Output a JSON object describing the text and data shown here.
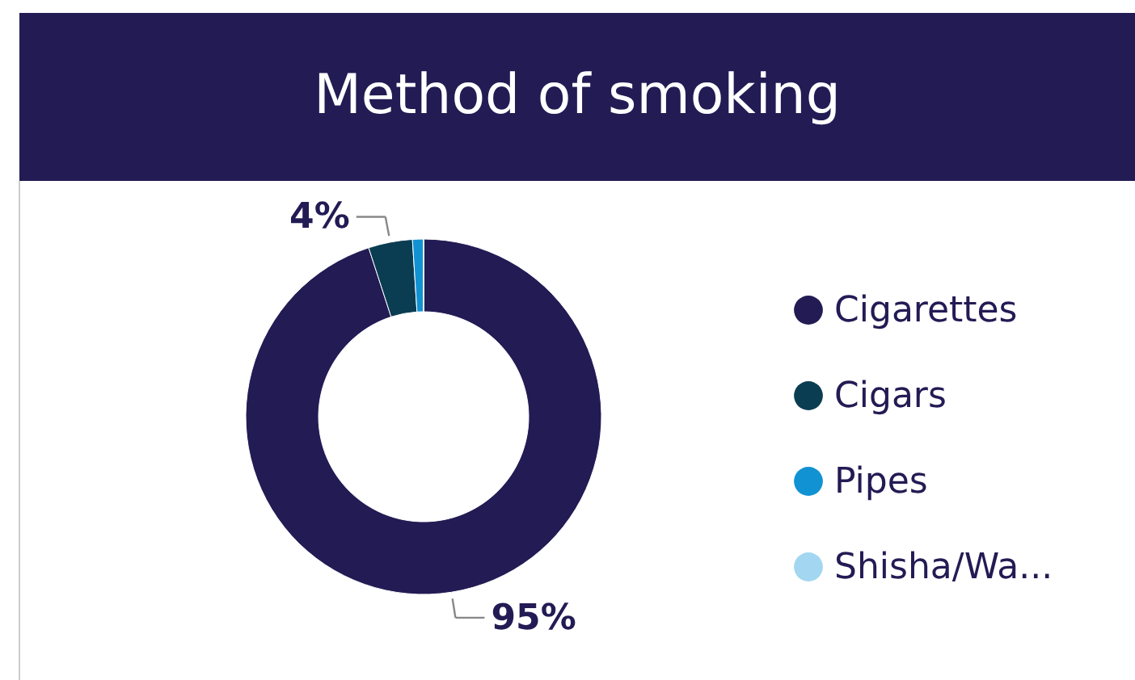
{
  "chart_data": {
    "type": "donut",
    "title": "Method of smoking",
    "categories": [
      "Cigarettes",
      "Cigars",
      "Pipes",
      "Shisha/Wa..."
    ],
    "values": [
      95,
      4,
      1,
      0
    ],
    "colors": [
      "#231b54",
      "#0b3d52",
      "#1192d3",
      "#a3d6f0"
    ],
    "value_labels": [
      "95%",
      "4%",
      null,
      null
    ],
    "legend": "right"
  }
}
